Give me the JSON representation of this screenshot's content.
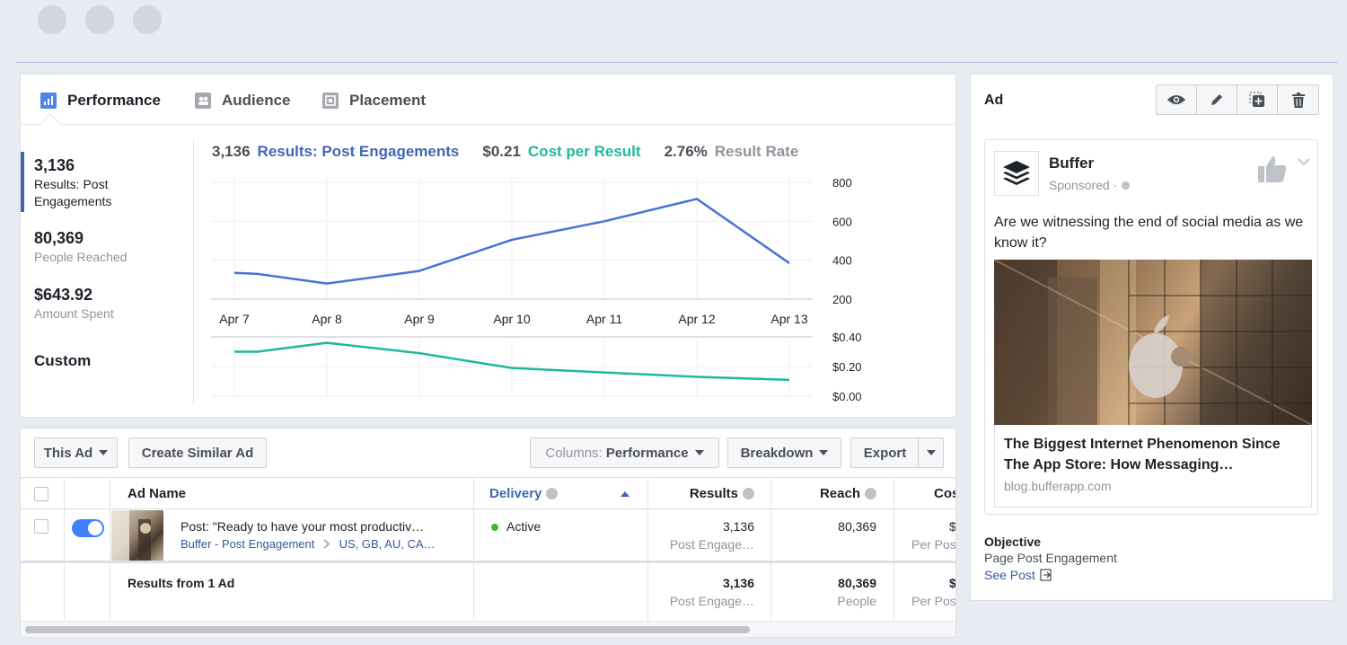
{
  "colors": {
    "engagement_line": "#4267b2",
    "cost_line": "#20b89b",
    "accent": "#4267b2",
    "active": "#42b72a"
  },
  "tabs": [
    {
      "label": "Performance",
      "icon": "bar-chart-icon"
    },
    {
      "label": "Audience",
      "icon": "people-icon"
    },
    {
      "label": "Placement",
      "icon": "placement-icon"
    }
  ],
  "summary": {
    "results_value": "3,136",
    "results_label": "Results: Post Engagements",
    "reach_value": "80,369",
    "reach_label": "People Reached",
    "spent_value": "$643.92",
    "spent_label": "Amount Spent",
    "custom_label": "Custom"
  },
  "metrics_header": {
    "results_value": "3,136",
    "results_label": "Results: Post Engagements",
    "cost_value": "$0.21",
    "cost_label": "Cost per Result",
    "rate_value": "2.76%",
    "rate_label": "Result Rate"
  },
  "chart_data": [
    {
      "type": "line",
      "categories": [
        "Apr 7",
        "Apr 8",
        "Apr 9",
        "Apr 10",
        "Apr 11",
        "Apr 12",
        "Apr 13"
      ],
      "x": [
        0,
        0.25,
        1,
        2,
        3,
        4,
        5,
        6
      ],
      "series": [
        {
          "values": [
            335,
            330,
            280,
            345,
            505,
            600,
            715,
            385
          ]
        }
      ],
      "yticks": [
        200,
        400,
        600,
        800
      ],
      "ylim": [
        100,
        800
      ],
      "grid": true
    },
    {
      "type": "line",
      "categories": [
        "Apr 7",
        "Apr 8",
        "Apr 9",
        "Apr 10",
        "Apr 11",
        "Apr 12",
        "Apr 13"
      ],
      "x": [
        0,
        0.25,
        1,
        2,
        3,
        4,
        5,
        6
      ],
      "series": [
        {
          "values": [
            0.3,
            0.3,
            0.36,
            0.29,
            0.19,
            0.16,
            0.13,
            0.11
          ]
        }
      ],
      "yticks": [
        "$0.00",
        "$0.20",
        "$0.40"
      ],
      "ylim": [
        0,
        0.4
      ],
      "grid": true
    }
  ],
  "ad_preview": {
    "title": "Ad",
    "tools": [
      "eye-icon",
      "pencil-icon",
      "duplicate-icon",
      "trash-icon"
    ],
    "page_name": "Buffer",
    "sponsored": "Sponsored ·",
    "text": "Are we witnessing the end of social media as we know it?",
    "headline": "The Biggest Internet Phenomenon Since The App Store: How Messaging…",
    "domain": "blog.bufferapp.com",
    "objective_label": "Objective",
    "objective_value": "Page Post Engagement",
    "see_post": "See Post"
  },
  "toolbar": {
    "this_ad": "This Ad",
    "create_similar": "Create Similar Ad",
    "columns_prefix": "Columns:",
    "columns_value": "Performance",
    "breakdown": "Breakdown",
    "export": "Export"
  },
  "table": {
    "headers": {
      "name": "Ad Name",
      "delivery": "Delivery",
      "results": "Results",
      "reach": "Reach",
      "cost": "Cos"
    },
    "row": {
      "name": "Post: \"Ready to have your most productiv…",
      "campaign": "Buffer - Post Engagement",
      "targeting": "US, GB, AU, CA…",
      "delivery": "Active",
      "results": "3,136",
      "results_sub": "Post Engage…",
      "reach": "80,369",
      "cost": "$",
      "cost_sub": "Per Pos"
    },
    "totals": {
      "label": "Results from 1 Ad",
      "results": "3,136",
      "results_sub": "Post Engage…",
      "reach": "80,369",
      "reach_sub": "People",
      "cost": "$",
      "cost_sub": "Per Pos"
    }
  }
}
